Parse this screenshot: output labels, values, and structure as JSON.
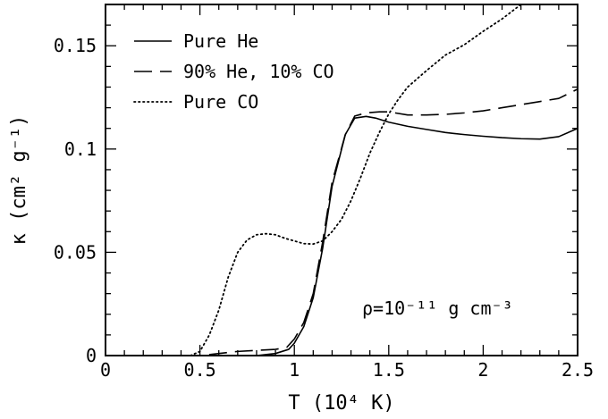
{
  "chart_data": {
    "type": "line",
    "xlabel": "T (10⁴ K)",
    "ylabel": "κ (cm² g⁻¹)",
    "xlim": [
      0,
      2.5
    ],
    "ylim": [
      0,
      0.17
    ],
    "xticks": [
      {
        "value": 0,
        "label": "0"
      },
      {
        "value": 0.5,
        "label": "0.5"
      },
      {
        "value": 1,
        "label": "1"
      },
      {
        "value": 1.5,
        "label": "1.5"
      },
      {
        "value": 2,
        "label": "2"
      },
      {
        "value": 2.5,
        "label": "2.5"
      }
    ],
    "yticks": [
      {
        "value": 0,
        "label": "0"
      },
      {
        "value": 0.05,
        "label": "0.05"
      },
      {
        "value": 0.1,
        "label": "0.1"
      },
      {
        "value": 0.15,
        "label": "0.15"
      }
    ],
    "annotation": "ρ=10⁻¹¹ g cm⁻³",
    "legend_position": "top-left",
    "grid": false,
    "series": [
      {
        "name": "Pure He",
        "style": "solid",
        "points": [
          [
            0.0,
            0.0
          ],
          [
            0.8,
            0.0
          ],
          [
            0.9,
            0.001
          ],
          [
            0.97,
            0.003
          ],
          [
            1.0,
            0.006
          ],
          [
            1.05,
            0.014
          ],
          [
            1.1,
            0.028
          ],
          [
            1.15,
            0.052
          ],
          [
            1.2,
            0.082
          ],
          [
            1.27,
            0.107
          ],
          [
            1.32,
            0.115
          ],
          [
            1.38,
            0.1158
          ],
          [
            1.43,
            0.115
          ],
          [
            1.5,
            0.113
          ],
          [
            1.6,
            0.111
          ],
          [
            1.7,
            0.1095
          ],
          [
            1.8,
            0.108
          ],
          [
            1.9,
            0.107
          ],
          [
            2.0,
            0.1062
          ],
          [
            2.1,
            0.1055
          ],
          [
            2.2,
            0.105
          ],
          [
            2.3,
            0.1048
          ],
          [
            2.4,
            0.106
          ],
          [
            2.5,
            0.11
          ]
        ]
      },
      {
        "name": "90% He, 10% CO",
        "style": "dashed",
        "points": [
          [
            0.0,
            0.0
          ],
          [
            0.5,
            0.0
          ],
          [
            0.6,
            0.001
          ],
          [
            0.7,
            0.002
          ],
          [
            0.8,
            0.0025
          ],
          [
            0.9,
            0.003
          ],
          [
            0.96,
            0.004
          ],
          [
            1.0,
            0.008
          ],
          [
            1.05,
            0.016
          ],
          [
            1.1,
            0.03
          ],
          [
            1.15,
            0.055
          ],
          [
            1.2,
            0.084
          ],
          [
            1.27,
            0.107
          ],
          [
            1.32,
            0.116
          ],
          [
            1.38,
            0.1175
          ],
          [
            1.45,
            0.118
          ],
          [
            1.5,
            0.118
          ],
          [
            1.6,
            0.1165
          ],
          [
            1.7,
            0.1165
          ],
          [
            1.8,
            0.1168
          ],
          [
            1.9,
            0.1175
          ],
          [
            2.0,
            0.1185
          ],
          [
            2.1,
            0.12
          ],
          [
            2.2,
            0.1215
          ],
          [
            2.3,
            0.123
          ],
          [
            2.4,
            0.1245
          ],
          [
            2.5,
            0.129
          ]
        ]
      },
      {
        "name": "Pure CO",
        "style": "dotted",
        "points": [
          [
            0.0,
            0.0
          ],
          [
            0.45,
            0.0
          ],
          [
            0.5,
            0.002
          ],
          [
            0.55,
            0.01
          ],
          [
            0.6,
            0.022
          ],
          [
            0.65,
            0.038
          ],
          [
            0.7,
            0.05
          ],
          [
            0.75,
            0.056
          ],
          [
            0.8,
            0.0585
          ],
          [
            0.85,
            0.059
          ],
          [
            0.9,
            0.0585
          ],
          [
            0.95,
            0.0568
          ],
          [
            1.0,
            0.0555
          ],
          [
            1.05,
            0.0542
          ],
          [
            1.1,
            0.054
          ],
          [
            1.15,
            0.0555
          ],
          [
            1.2,
            0.06
          ],
          [
            1.25,
            0.066
          ],
          [
            1.3,
            0.075
          ],
          [
            1.35,
            0.086
          ],
          [
            1.4,
            0.098
          ],
          [
            1.45,
            0.108
          ],
          [
            1.5,
            0.117
          ],
          [
            1.55,
            0.124
          ],
          [
            1.6,
            0.13
          ],
          [
            1.7,
            0.138
          ],
          [
            1.8,
            0.1455
          ],
          [
            1.9,
            0.1505
          ],
          [
            2.0,
            0.157
          ],
          [
            2.1,
            0.163
          ],
          [
            2.2,
            0.17
          ]
        ]
      }
    ]
  }
}
